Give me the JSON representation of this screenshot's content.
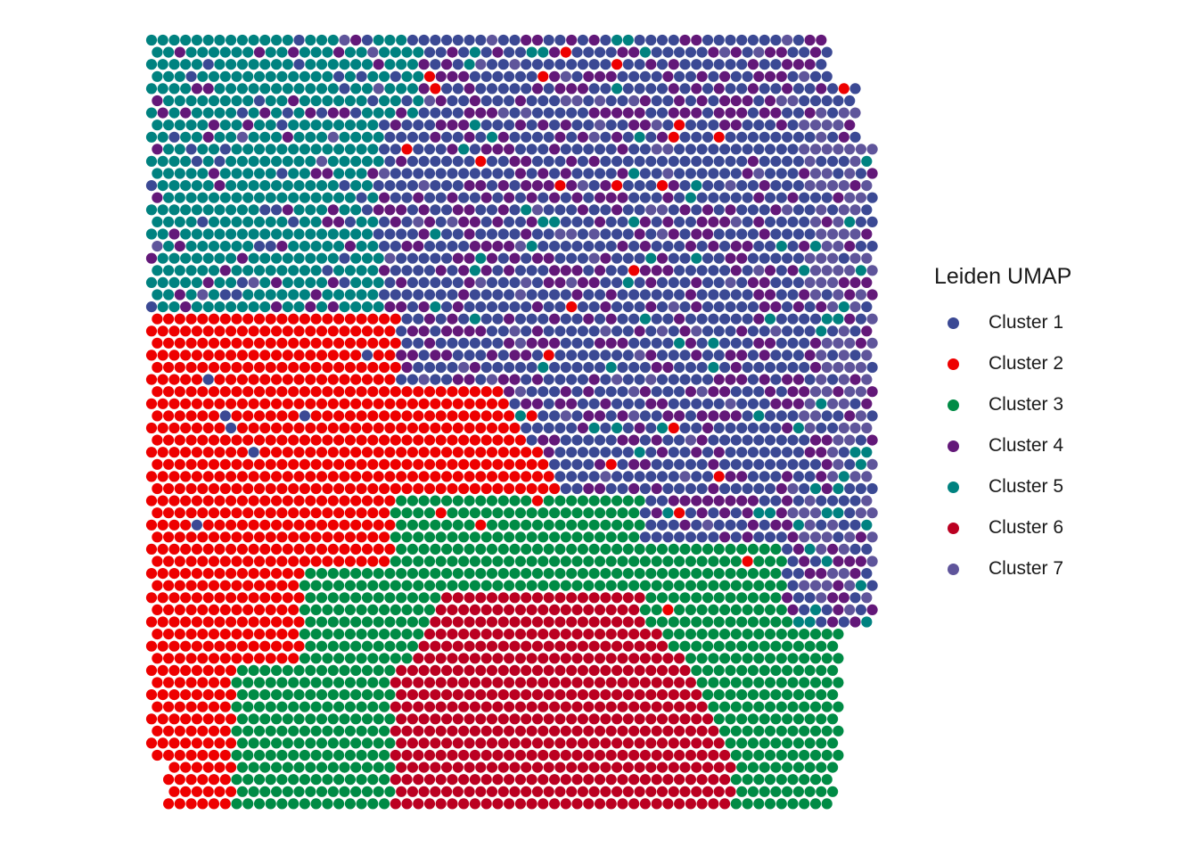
{
  "chart_data": {
    "type": "scatter",
    "subtype": "spatial-spot-map",
    "title": "",
    "xlabel": "",
    "ylabel": "",
    "axes_visible": false,
    "grid": false,
    "legend": {
      "title": "Leiden UMAP",
      "placement": "right"
    },
    "series": [
      {
        "name": "Cluster 1",
        "color": "#3b4994"
      },
      {
        "name": "Cluster 2",
        "color": "#ee0000"
      },
      {
        "name": "Cluster 3",
        "color": "#008b45"
      },
      {
        "name": "Cluster 4",
        "color": "#631879"
      },
      {
        "name": "Cluster 5",
        "color": "#008280"
      },
      {
        "name": "Cluster 6",
        "color": "#bb0021"
      },
      {
        "name": "Cluster 7",
        "color": "#5f559b"
      }
    ],
    "grid_shape": {
      "rows": 64,
      "columns": 64
    },
    "notes_regions": {
      "Cluster 5": "top-left",
      "Cluster 1": "top-right",
      "Cluster 4": "interspersed within top-right",
      "Cluster 7": "right edge",
      "Cluster 2": "left / middle-left",
      "Cluster 3": "bottom band",
      "Cluster 6": "bottom center"
    }
  }
}
